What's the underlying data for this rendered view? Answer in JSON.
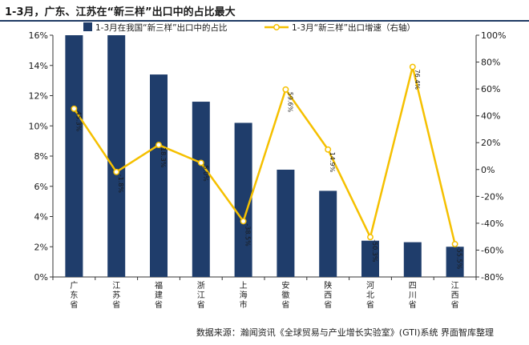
{
  "title": "1-3月，广东、江苏在“新三样”出口中的占比最大",
  "source": "数据来源：瀚闻资讯《全球贸易与产业增长实验室》(GTI)系统  界面智库整理",
  "colors": {
    "bar": "#1f3d6b",
    "line": "#f5c000",
    "title_rule": "#1f3a64",
    "axis": "#333333"
  },
  "chart_data": {
    "type": "bar",
    "categories": [
      [
        "广",
        "东",
        "省"
      ],
      [
        "江",
        "苏",
        "省"
      ],
      [
        "福",
        "建",
        "省"
      ],
      [
        "浙",
        "江",
        "省"
      ],
      [
        "上",
        "海",
        "市"
      ],
      [
        "安",
        "徽",
        "省"
      ],
      [
        "陕",
        "西",
        "省"
      ],
      [
        "河",
        "北",
        "省"
      ],
      [
        "四",
        "川",
        "省"
      ],
      [
        "江",
        "西",
        "省"
      ]
    ],
    "series": [
      {
        "name": "1-3月在我国“新三样”出口中的占比",
        "type": "bar",
        "axis": "left",
        "values": [
          16.0,
          16.0,
          13.4,
          11.6,
          10.2,
          7.1,
          5.7,
          2.4,
          2.3,
          2.0
        ]
      },
      {
        "name": "1-3月“新三样”出口增速（右轴）",
        "type": "line",
        "axis": "right",
        "values": [
          45.3,
          -1.8,
          18.3,
          5.0,
          -38.5,
          59.6,
          14.9,
          -50.3,
          76.4,
          -55.5
        ],
        "labels": [
          "45.3%",
          "-1.8%",
          "18.3%",
          "5.0%",
          "-38.5%",
          "59.6%",
          "14.9%",
          "-50.3%",
          "76.4%",
          "-55.5%"
        ]
      }
    ],
    "y_left": {
      "min": 0,
      "max": 16,
      "step": 2,
      "unit": "%",
      "ticks": [
        "0%",
        "2%",
        "4%",
        "6%",
        "8%",
        "10%",
        "12%",
        "14%",
        "16%"
      ]
    },
    "y_right": {
      "min": -80,
      "max": 100,
      "step": 20,
      "unit": "%",
      "ticks": [
        "-80%",
        "-60%",
        "-40%",
        "-20%",
        "0%",
        "20%",
        "40%",
        "60%",
        "80%",
        "100%"
      ]
    },
    "legend_position": "top-center",
    "grid": false
  }
}
